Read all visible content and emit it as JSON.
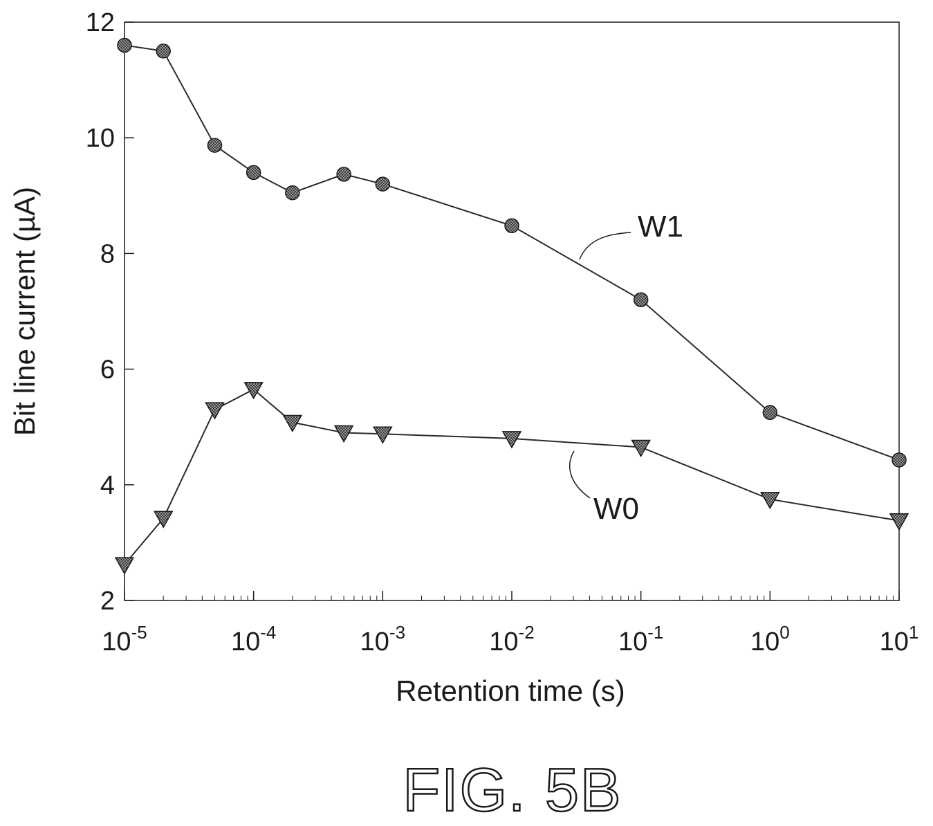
{
  "chart_data": {
    "type": "line",
    "xlabel": "Retention time (s)",
    "ylabel": "Bit line current (µA)",
    "xscale": "log",
    "xlim": [
      1e-05,
      10
    ],
    "ylim": [
      2,
      12
    ],
    "x_ticks": [
      {
        "value": 1e-05,
        "base": "10",
        "exp": "-5"
      },
      {
        "value": 0.0001,
        "base": "10",
        "exp": "-4"
      },
      {
        "value": 0.001,
        "base": "10",
        "exp": "-3"
      },
      {
        "value": 0.01,
        "base": "10",
        "exp": "-2"
      },
      {
        "value": 0.1,
        "base": "10",
        "exp": "-1"
      },
      {
        "value": 1,
        "base": "10",
        "exp": "0"
      },
      {
        "value": 10,
        "base": "10",
        "exp": "1"
      }
    ],
    "y_ticks": [
      {
        "value": 2,
        "label": "2"
      },
      {
        "value": 4,
        "label": "4"
      },
      {
        "value": 6,
        "label": "6"
      },
      {
        "value": 8,
        "label": "8"
      },
      {
        "value": 10,
        "label": "10"
      },
      {
        "value": 12,
        "label": "12"
      }
    ],
    "grid": false,
    "series": [
      {
        "name": "W1",
        "marker": "circle",
        "x": [
          1e-05,
          2e-05,
          5e-05,
          0.0001,
          0.0002,
          0.0005,
          0.001,
          0.01,
          0.1,
          1,
          10
        ],
        "y": [
          11.6,
          11.5,
          9.87,
          9.4,
          9.05,
          9.37,
          9.2,
          8.48,
          7.2,
          5.25,
          4.43
        ]
      },
      {
        "name": "W0",
        "marker": "triangle-down",
        "x": [
          1e-05,
          2e-05,
          5e-05,
          0.0001,
          0.0002,
          0.0005,
          0.001,
          0.01,
          0.1,
          1,
          10
        ],
        "y": [
          2.62,
          3.42,
          5.3,
          5.65,
          5.08,
          4.9,
          4.88,
          4.8,
          4.65,
          3.75,
          3.38
        ]
      }
    ]
  },
  "figure": {
    "caption": "FIG. 5B"
  }
}
